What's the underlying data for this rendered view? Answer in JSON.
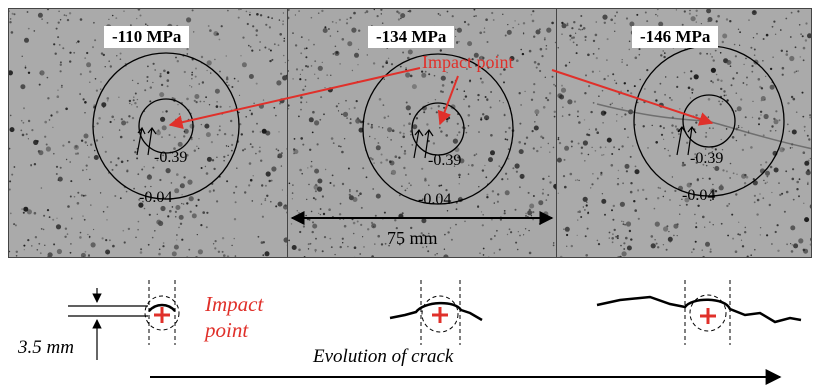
{
  "panels": [
    {
      "stress": "-110 MPa",
      "inner_label": "-0.39",
      "outer_label": "-0.04"
    },
    {
      "stress": "-134 MPa",
      "inner_label": "-0.39",
      "outer_label": "-0.04"
    },
    {
      "stress": "-146 MPa",
      "inner_label": "-0.39",
      "outer_label": "-0.04"
    }
  ],
  "impact_point_label": "Impact point",
  "width_dimension": "75 mm",
  "sketch": {
    "thickness_label": "3.5 mm",
    "impact_label_line1": "Impact",
    "impact_label_line2": "point",
    "evolution_label": "Evolution of crack"
  },
  "colors": {
    "annotation_red": "#e0302a",
    "specimen_gray": "#a9a9a9"
  }
}
